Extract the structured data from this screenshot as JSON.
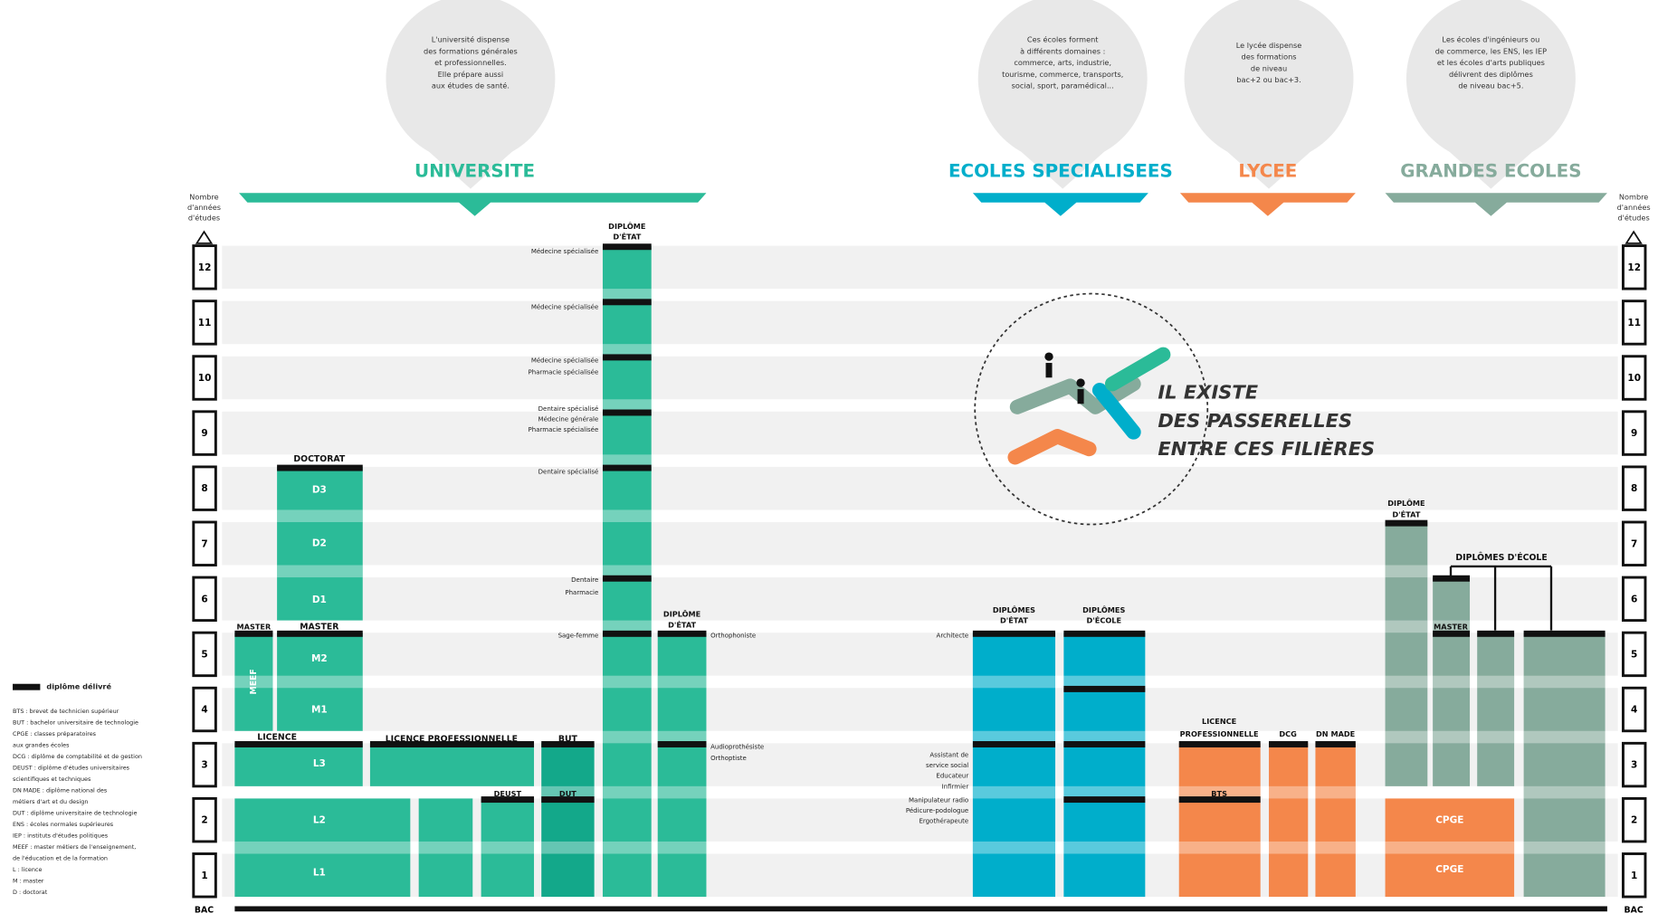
{
  "bubbles": [
    [
      "L'université dispense",
      "des formations générales",
      "et professionnelles.",
      "Elle prépare aussi",
      "aux études de santé."
    ],
    [
      "Ces écoles forment",
      "à différents domaines :",
      "commerce, arts, industrie,",
      "tourisme, commerce, transports,",
      "social, sport, paramédical..."
    ],
    [
      "Le lycée dispense",
      "des formations",
      "de niveau",
      "bac+2 ou bac+3."
    ],
    [
      "Les écoles d'ingénieurs ou",
      "de commerce, les ENS, les IEP",
      "et les écoles d'arts publiques",
      "délivrent des diplômes",
      "de niveau bac+5."
    ]
  ],
  "sections": [
    "UNIVERSITE",
    "ECOLES SPECIALISEES",
    "LYCEE",
    "GRANDES ECOLES"
  ],
  "axis": {
    "caption": [
      "Nombre",
      "d'années",
      "d'études"
    ],
    "years": [
      "1",
      "2",
      "3",
      "4",
      "5",
      "6",
      "7",
      "8",
      "9",
      "10",
      "11",
      "12"
    ],
    "baseline": "BAC"
  },
  "labels": [
    "DOCTORAT",
    "D1",
    "D2",
    "D3",
    "MASTER",
    "MASTER",
    "MEEF",
    "M1",
    "M2",
    "LICENCE",
    "L1",
    "L2",
    "L3",
    "LICENCE PROFESSIONNELLE",
    "BUT",
    "DEUST",
    "DUT",
    "DIPLÔME",
    "D'ÉTAT",
    "DIPLÔME",
    "D'ÉTAT",
    "DIPLÔMES",
    "D'ÉTAT",
    "DIPLÔMES",
    "D'ÉCOLE",
    "LICENCE",
    "PROFESSIONNELLE",
    "BTS",
    "DCG",
    "DN MADE",
    "CPGE",
    "CPGE",
    "DIPLÔME",
    "D'ÉTAT",
    "MASTER",
    "DIPLÔMES D'ÉCOLE"
  ],
  "side_labels": [
    "Médecine spécialisée",
    "Médecine spécialisée",
    "Médecine spécialisée",
    "Pharmacie spécialisée",
    "Dentaire spécialisé",
    "Médecine générale",
    "Pharmacie spécialisée",
    "Dentaire spécialisé",
    "Dentaire",
    "Pharmacie",
    "Sage-femme",
    "Orthophoniste",
    "Audioprothésiste",
    "Orthoptiste",
    "Architecte",
    "Assistant de",
    "service social",
    "Educateur",
    "Infirmier",
    "Manipulateur radio",
    "Pédicure-podologue",
    "Ergothérapeute"
  ],
  "passerelles": [
    "IL EXISTE",
    "DES PASSERELLES",
    "ENTRE CES FILIÈRES"
  ],
  "legend": {
    "key": "diplôme délivré",
    "items": [
      "BTS : brevet de technicien supérieur",
      "BUT : bachelor universitaire de technologie",
      "CPGE : classes préparatoires",
      "aux grandes écoles",
      "DCG : diplôme de comptabilité et de gestion",
      "DEUST : diplôme d'études universitaires",
      "scientifiques et techniques",
      "DN MADE : diplôme national des",
      "métiers d'art et du design",
      "DUT : diplôme universitaire de technologie",
      "ENS : écoles normales supérieures",
      "IEP : instituts d'études politiques",
      "MEEF : master métiers de l'enseignement,",
      "de l'éducation et de la formation",
      "L : licence",
      "M : master",
      "D : doctorat"
    ]
  }
}
